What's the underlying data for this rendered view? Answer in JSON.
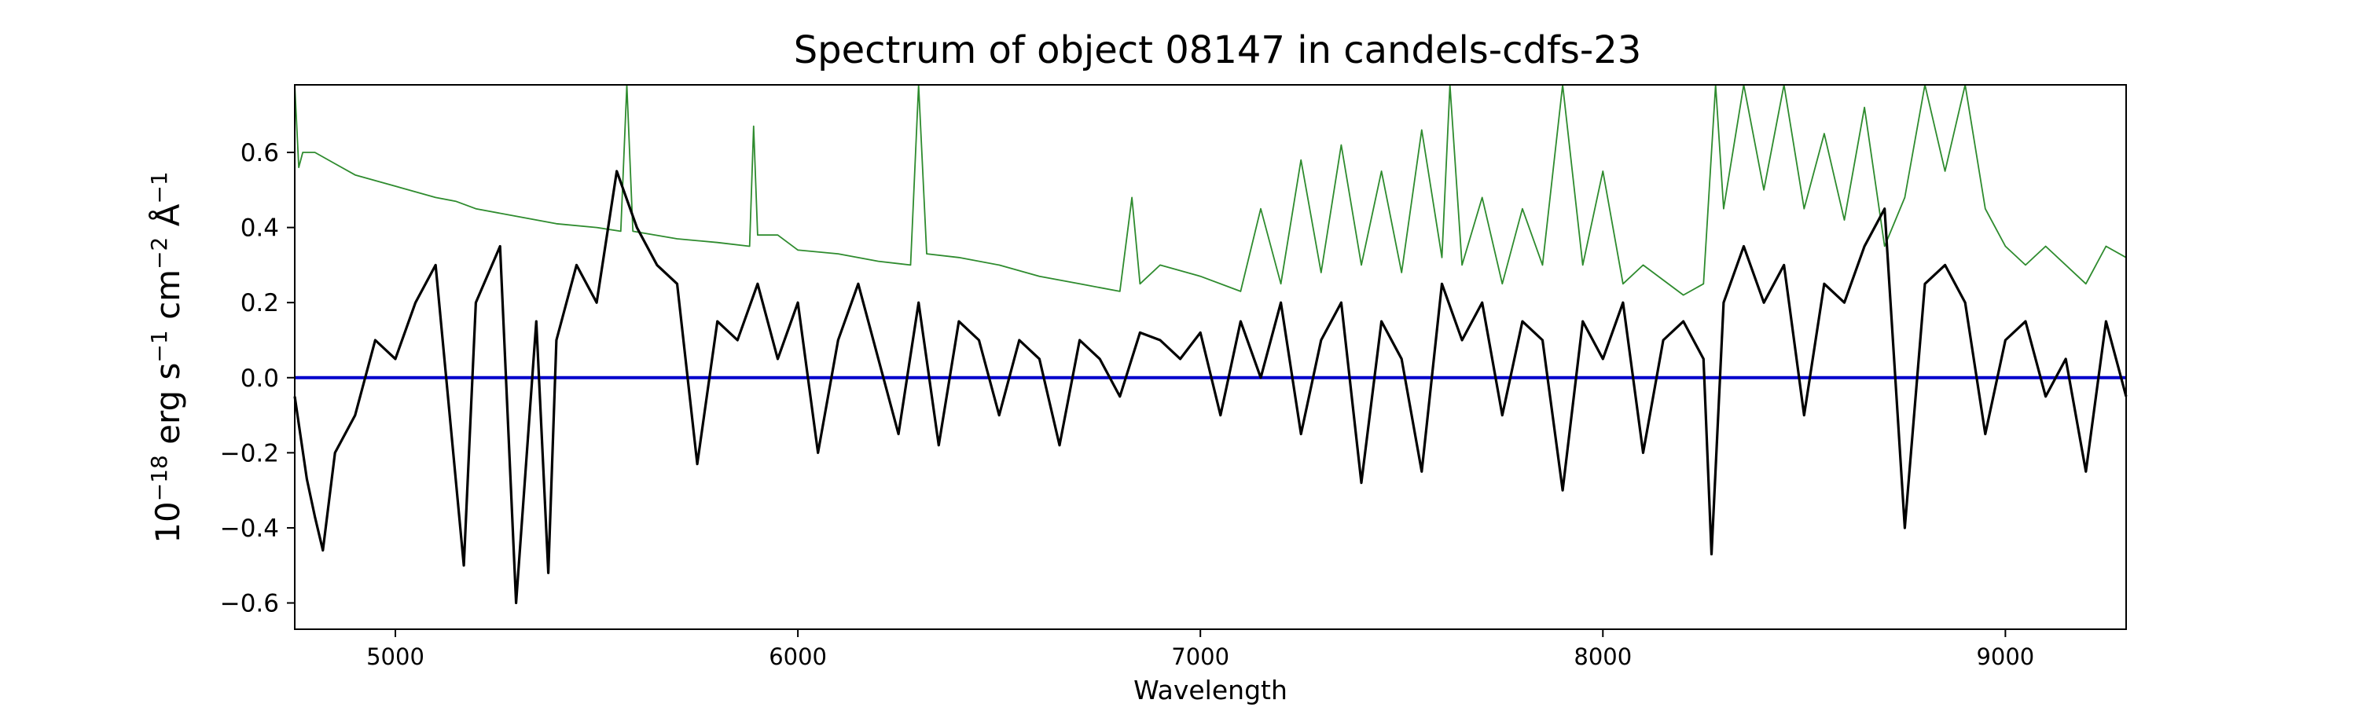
{
  "chart_data": {
    "type": "line",
    "title": "Spectrum of object 08147 in candels-cdfs-23",
    "xlabel": "Wavelength",
    "ylabel_parts": {
      "base": "10",
      "exp1": "−18",
      "erg": " erg s",
      "exp2": "−1",
      "cm": " cm",
      "exp3": "−2",
      "ang": " Å",
      "exp4": "−1"
    },
    "xlim": [
      4750,
      9300
    ],
    "ylim": [
      -0.67,
      0.78
    ],
    "x_ticks": [
      5000,
      6000,
      7000,
      8000,
      9000
    ],
    "y_ticks": [
      -0.6,
      -0.4,
      -0.2,
      0.0,
      0.2,
      0.4,
      0.6
    ],
    "y_tick_labels": [
      "−0.6",
      "−0.4",
      "−0.2",
      "0.0",
      "0.2",
      "0.4",
      "0.6"
    ],
    "grid": false,
    "series": [
      {
        "role": "noise",
        "color": "#2e8b2e",
        "points": [
          [
            4750,
            0.78
          ],
          [
            4760,
            0.56
          ],
          [
            4770,
            0.6
          ],
          [
            4800,
            0.6
          ],
          [
            4850,
            0.57
          ],
          [
            4900,
            0.54
          ],
          [
            5000,
            0.51
          ],
          [
            5100,
            0.48
          ],
          [
            5150,
            0.47
          ],
          [
            5200,
            0.45
          ],
          [
            5300,
            0.43
          ],
          [
            5400,
            0.41
          ],
          [
            5500,
            0.4
          ],
          [
            5560,
            0.39
          ],
          [
            5575,
            0.78
          ],
          [
            5590,
            0.39
          ],
          [
            5700,
            0.37
          ],
          [
            5800,
            0.36
          ],
          [
            5880,
            0.35
          ],
          [
            5890,
            0.67
          ],
          [
            5900,
            0.38
          ],
          [
            5950,
            0.38
          ],
          [
            6000,
            0.34
          ],
          [
            6100,
            0.33
          ],
          [
            6200,
            0.31
          ],
          [
            6280,
            0.3
          ],
          [
            6300,
            0.78
          ],
          [
            6320,
            0.33
          ],
          [
            6400,
            0.32
          ],
          [
            6500,
            0.3
          ],
          [
            6600,
            0.27
          ],
          [
            6700,
            0.25
          ],
          [
            6800,
            0.23
          ],
          [
            6830,
            0.48
          ],
          [
            6850,
            0.25
          ],
          [
            6900,
            0.3
          ],
          [
            7000,
            0.27
          ],
          [
            7100,
            0.23
          ],
          [
            7150,
            0.45
          ],
          [
            7200,
            0.25
          ],
          [
            7250,
            0.58
          ],
          [
            7300,
            0.28
          ],
          [
            7350,
            0.62
          ],
          [
            7400,
            0.3
          ],
          [
            7450,
            0.55
          ],
          [
            7500,
            0.28
          ],
          [
            7550,
            0.66
          ],
          [
            7600,
            0.32
          ],
          [
            7620,
            0.78
          ],
          [
            7650,
            0.3
          ],
          [
            7700,
            0.48
          ],
          [
            7750,
            0.25
          ],
          [
            7800,
            0.45
          ],
          [
            7850,
            0.3
          ],
          [
            7900,
            0.78
          ],
          [
            7950,
            0.3
          ],
          [
            8000,
            0.55
          ],
          [
            8050,
            0.25
          ],
          [
            8100,
            0.3
          ],
          [
            8200,
            0.22
          ],
          [
            8250,
            0.25
          ],
          [
            8280,
            0.78
          ],
          [
            8300,
            0.45
          ],
          [
            8350,
            0.78
          ],
          [
            8400,
            0.5
          ],
          [
            8450,
            0.78
          ],
          [
            8500,
            0.45
          ],
          [
            8550,
            0.65
          ],
          [
            8600,
            0.42
          ],
          [
            8650,
            0.72
          ],
          [
            8700,
            0.35
          ],
          [
            8750,
            0.48
          ],
          [
            8800,
            0.78
          ],
          [
            8850,
            0.55
          ],
          [
            8900,
            0.78
          ],
          [
            8950,
            0.45
          ],
          [
            9000,
            0.35
          ],
          [
            9050,
            0.3
          ],
          [
            9100,
            0.35
          ],
          [
            9200,
            0.25
          ],
          [
            9250,
            0.35
          ],
          [
            9300,
            0.32
          ]
        ]
      },
      {
        "role": "zero",
        "color": "#0000cc",
        "points": [
          [
            4750,
            0
          ],
          [
            9300,
            0
          ]
        ]
      },
      {
        "role": "flux",
        "color": "#000000",
        "points": [
          [
            4750,
            -0.05
          ],
          [
            4780,
            -0.27
          ],
          [
            4800,
            -0.37
          ],
          [
            4820,
            -0.46
          ],
          [
            4850,
            -0.2
          ],
          [
            4900,
            -0.1
          ],
          [
            4950,
            0.1
          ],
          [
            5000,
            0.05
          ],
          [
            5050,
            0.2
          ],
          [
            5100,
            0.3
          ],
          [
            5170,
            -0.5
          ],
          [
            5200,
            0.2
          ],
          [
            5260,
            0.35
          ],
          [
            5300,
            -0.6
          ],
          [
            5350,
            0.15
          ],
          [
            5380,
            -0.52
          ],
          [
            5400,
            0.1
          ],
          [
            5450,
            0.3
          ],
          [
            5500,
            0.2
          ],
          [
            5550,
            0.55
          ],
          [
            5600,
            0.4
          ],
          [
            5650,
            0.3
          ],
          [
            5700,
            0.25
          ],
          [
            5750,
            -0.23
          ],
          [
            5800,
            0.15
          ],
          [
            5850,
            0.1
          ],
          [
            5900,
            0.25
          ],
          [
            5950,
            0.05
          ],
          [
            6000,
            0.2
          ],
          [
            6050,
            -0.2
          ],
          [
            6100,
            0.1
          ],
          [
            6150,
            0.25
          ],
          [
            6200,
            0.05
          ],
          [
            6250,
            -0.15
          ],
          [
            6300,
            0.2
          ],
          [
            6350,
            -0.18
          ],
          [
            6400,
            0.15
          ],
          [
            6450,
            0.1
          ],
          [
            6500,
            -0.1
          ],
          [
            6550,
            0.1
          ],
          [
            6600,
            0.05
          ],
          [
            6650,
            -0.18
          ],
          [
            6700,
            0.1
          ],
          [
            6750,
            0.05
          ],
          [
            6800,
            -0.05
          ],
          [
            6850,
            0.12
          ],
          [
            6900,
            0.1
          ],
          [
            6950,
            0.05
          ],
          [
            7000,
            0.12
          ],
          [
            7050,
            -0.1
          ],
          [
            7100,
            0.15
          ],
          [
            7150,
            0.0
          ],
          [
            7200,
            0.2
          ],
          [
            7250,
            -0.15
          ],
          [
            7300,
            0.1
          ],
          [
            7350,
            0.2
          ],
          [
            7400,
            -0.28
          ],
          [
            7450,
            0.15
          ],
          [
            7500,
            0.05
          ],
          [
            7550,
            -0.25
          ],
          [
            7600,
            0.25
          ],
          [
            7650,
            0.1
          ],
          [
            7700,
            0.2
          ],
          [
            7750,
            -0.1
          ],
          [
            7800,
            0.15
          ],
          [
            7850,
            0.1
          ],
          [
            7900,
            -0.3
          ],
          [
            7950,
            0.15
          ],
          [
            8000,
            0.05
          ],
          [
            8050,
            0.2
          ],
          [
            8100,
            -0.2
          ],
          [
            8150,
            0.1
          ],
          [
            8200,
            0.15
          ],
          [
            8250,
            0.05
          ],
          [
            8270,
            -0.47
          ],
          [
            8300,
            0.2
          ],
          [
            8350,
            0.35
          ],
          [
            8400,
            0.2
          ],
          [
            8450,
            0.3
          ],
          [
            8500,
            -0.1
          ],
          [
            8550,
            0.25
          ],
          [
            8600,
            0.2
          ],
          [
            8650,
            0.35
          ],
          [
            8700,
            0.45
          ],
          [
            8750,
            -0.4
          ],
          [
            8800,
            0.25
          ],
          [
            8850,
            0.3
          ],
          [
            8900,
            0.2
          ],
          [
            8950,
            -0.15
          ],
          [
            9000,
            0.1
          ],
          [
            9050,
            0.15
          ],
          [
            9100,
            -0.05
          ],
          [
            9150,
            0.05
          ],
          [
            9200,
            -0.25
          ],
          [
            9250,
            0.15
          ],
          [
            9300,
            -0.05
          ]
        ]
      }
    ]
  }
}
